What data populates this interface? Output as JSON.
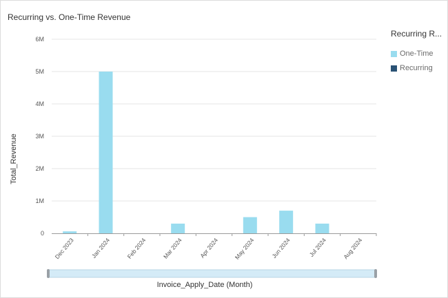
{
  "chart_data": {
    "type": "bar",
    "title": "Recurring vs. One-Time Revenue",
    "xlabel": "Invoice_Apply_Date (Month)",
    "ylabel": "Total_Revenue",
    "ylim": [
      0,
      6000000
    ],
    "yticks": [
      0,
      1000000,
      2000000,
      3000000,
      4000000,
      5000000,
      6000000
    ],
    "ytick_labels": [
      "0",
      "1M",
      "2M",
      "3M",
      "4M",
      "5M",
      "6M"
    ],
    "categories": [
      "Dec 2023",
      "Jan 2024",
      "Feb 2024",
      "Mar 2024",
      "Apr 2024",
      "May 2024",
      "Jun 2024",
      "Jul 2024",
      "Aug 2024"
    ],
    "series": [
      {
        "name": "One-Time",
        "color": "#99dcef",
        "values": [
          60000,
          5000000,
          0,
          300000,
          0,
          500000,
          700000,
          300000,
          0
        ]
      },
      {
        "name": "Recurring",
        "color": "#2a5275",
        "values": [
          0,
          0,
          0,
          0,
          0,
          0,
          0,
          0,
          0
        ]
      }
    ],
    "legend": {
      "title": "Recurring R...",
      "placement": "right"
    },
    "grid": true
  }
}
